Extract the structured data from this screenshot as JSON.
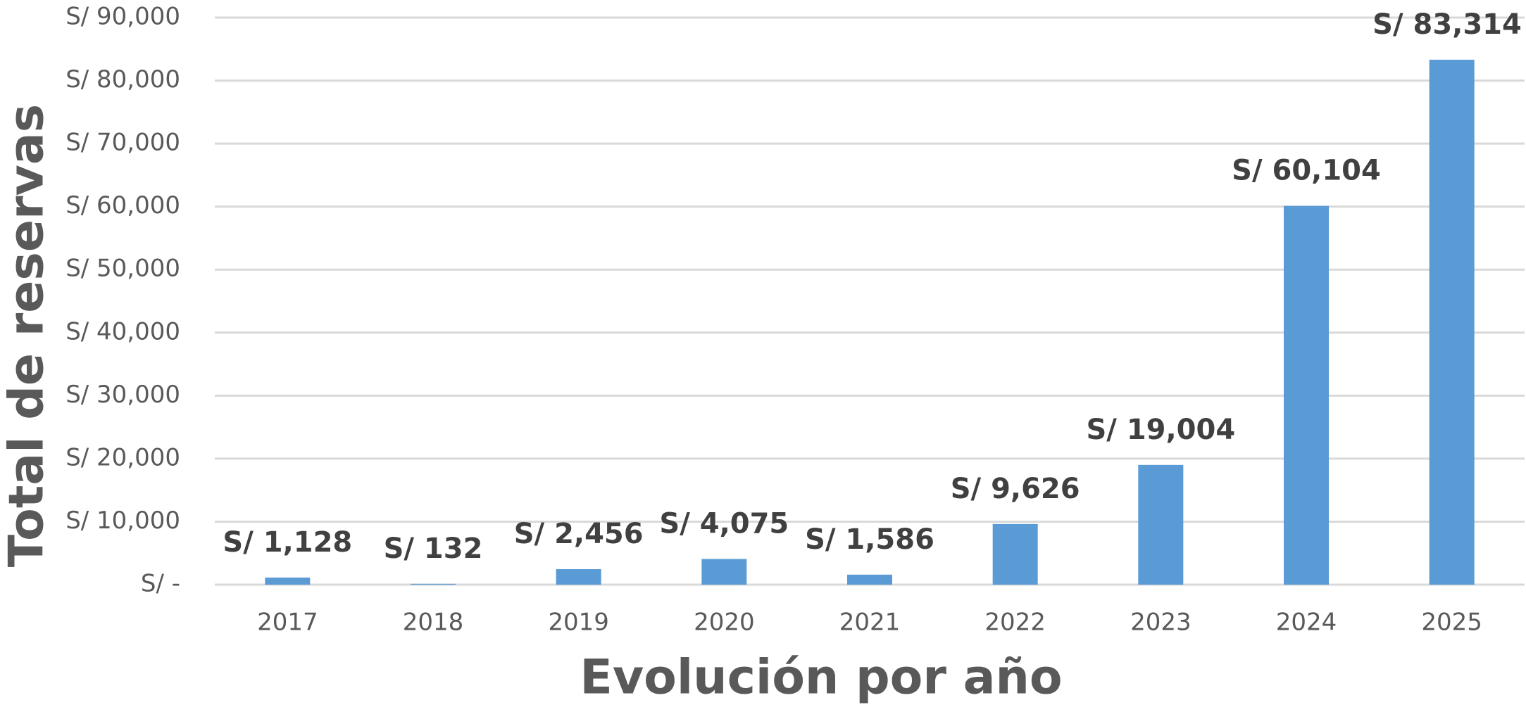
{
  "chart_data": {
    "type": "bar",
    "xlabel": "Evolución por año",
    "ylabel": "Total de reservas",
    "categories": [
      "2017",
      "2018",
      "2019",
      "2020",
      "2021",
      "2022",
      "2023",
      "2024",
      "2025"
    ],
    "values": [
      1128,
      132,
      2456,
      4075,
      1586,
      9626,
      19004,
      60104,
      83314
    ],
    "value_labels": [
      "S/ 1,128",
      "S/ 132",
      "S/ 2,456",
      "S/ 4,075",
      "S/ 1,586",
      "S/ 9,626",
      "S/ 19,004",
      "S/ 60,104",
      "S/ 83,314"
    ],
    "color": "#5b9bd5",
    "ylim": [
      0,
      90000
    ],
    "yticks": [
      {
        "value": 0,
        "label": "S/ -"
      },
      {
        "value": 10000,
        "label": "S/ 10,000"
      },
      {
        "value": 20000,
        "label": "S/ 20,000"
      },
      {
        "value": 30000,
        "label": "S/ 30,000"
      },
      {
        "value": 40000,
        "label": "S/ 40,000"
      },
      {
        "value": 50000,
        "label": "S/ 50,000"
      },
      {
        "value": 60000,
        "label": "S/ 60,000"
      },
      {
        "value": 70000,
        "label": "S/ 70,000"
      },
      {
        "value": 80000,
        "label": "S/ 80,000"
      },
      {
        "value": 90000,
        "label": "S/ 90,000"
      }
    ],
    "grid": true
  }
}
